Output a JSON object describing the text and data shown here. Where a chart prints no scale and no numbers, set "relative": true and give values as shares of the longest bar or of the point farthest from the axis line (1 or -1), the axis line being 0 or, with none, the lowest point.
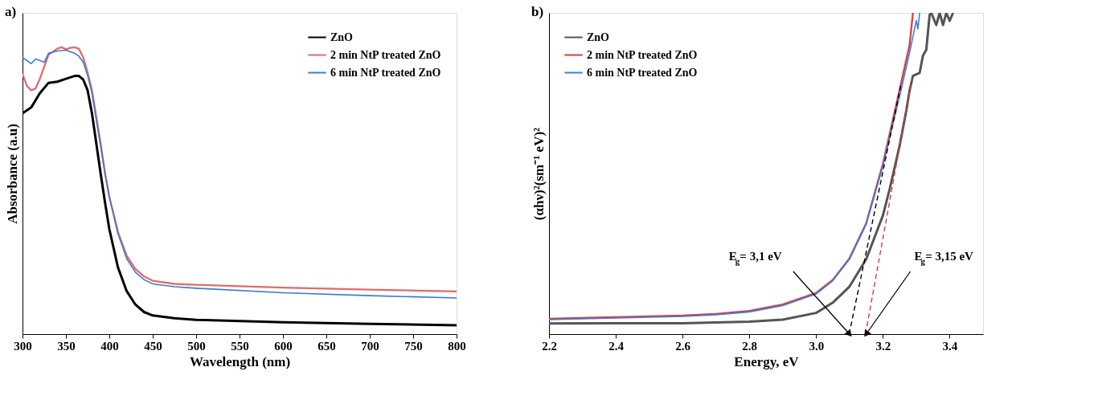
{
  "chart_data": [
    {
      "type": "line",
      "title": "a)",
      "xlabel": "Wavelength (nm)",
      "ylabel": "Absorbance (a.u)",
      "relative": true,
      "legend": "top right",
      "xlim": [
        300,
        800
      ],
      "xticks": [
        300,
        350,
        400,
        450,
        500,
        550,
        600,
        650,
        700,
        750,
        800
      ],
      "series": [
        {
          "name": "ZnO",
          "color": "#000000",
          "x": [
            300,
            310,
            320,
            330,
            340,
            350,
            360,
            365,
            370,
            375,
            380,
            385,
            390,
            395,
            400,
            410,
            420,
            430,
            440,
            450,
            475,
            500,
            600,
            700,
            800
          ],
          "values": [
            0.77,
            0.79,
            0.84,
            0.876,
            0.88,
            0.89,
            0.9,
            0.9,
            0.887,
            0.85,
            0.77,
            0.665,
            0.56,
            0.46,
            0.366,
            0.232,
            0.15,
            0.103,
            0.077,
            0.065,
            0.055,
            0.05,
            0.041,
            0.036,
            0.031
          ]
        },
        {
          "name": "2 min NtP treated ZnO",
          "color": "#e06b6b",
          "x": [
            300,
            305,
            310,
            315,
            320,
            330,
            340,
            345,
            350,
            355,
            360,
            365,
            370,
            375,
            380,
            385,
            390,
            395,
            400,
            410,
            420,
            430,
            440,
            450,
            475,
            500,
            600,
            700,
            800
          ],
          "values": [
            0.907,
            0.866,
            0.85,
            0.856,
            0.89,
            0.974,
            0.995,
            1.0,
            0.993,
            0.998,
            1.0,
            0.995,
            0.964,
            0.912,
            0.85,
            0.758,
            0.665,
            0.562,
            0.479,
            0.356,
            0.273,
            0.227,
            0.201,
            0.186,
            0.175,
            0.172,
            0.162,
            0.155,
            0.149
          ]
        },
        {
          "name": "6 min NtP treated ZnO",
          "color": "#3a7bd5",
          "x": [
            300,
            305,
            310,
            315,
            320,
            325,
            330,
            340,
            350,
            360,
            365,
            370,
            375,
            380,
            385,
            390,
            395,
            400,
            410,
            420,
            430,
            440,
            450,
            475,
            500,
            600,
            700,
            800
          ],
          "values": [
            0.964,
            0.954,
            0.943,
            0.959,
            0.954,
            0.948,
            0.979,
            0.987,
            0.99,
            0.979,
            0.969,
            0.948,
            0.902,
            0.84,
            0.747,
            0.655,
            0.562,
            0.479,
            0.35,
            0.263,
            0.216,
            0.19,
            0.175,
            0.165,
            0.16,
            0.144,
            0.134,
            0.126
          ]
        }
      ]
    },
    {
      "type": "line",
      "title": "b)",
      "xlabel": "Energy, eV",
      "ylabel": "(αhν)²(sm⁻¹ eV)²",
      "relative": true,
      "legend": "top left",
      "xlim": [
        2.2,
        3.5
      ],
      "xticks": [
        {
          "value": 2.2,
          "label": "2.2"
        },
        2.4,
        2.6,
        2.8,
        {
          "value": 3.0,
          "label": "3.0"
        },
        3.2,
        3.4
      ],
      "series": [
        {
          "name": "ZnO",
          "color": "#555555",
          "x": [
            2.2,
            2.6,
            2.8,
            2.9,
            3.0,
            3.05,
            3.1,
            3.15,
            3.2,
            3.22,
            3.25,
            3.27,
            3.28,
            3.29,
            3.31,
            3.32,
            3.33,
            3.34,
            3.345,
            3.36,
            3.37,
            3.38,
            3.39,
            3.4,
            3.41
          ],
          "values": [
            0.033,
            0.034,
            0.039,
            0.045,
            0.066,
            0.098,
            0.148,
            0.233,
            0.369,
            0.45,
            0.586,
            0.695,
            0.758,
            0.804,
            0.813,
            0.867,
            0.885,
            0.994,
            1.0,
            0.962,
            1.0,
            0.962,
            1.0,
            0.975,
            1.0
          ]
        },
        {
          "name": "2 min NtP treated ZnO",
          "color": "#e03a3a",
          "x": [
            2.2,
            2.4,
            2.6,
            2.7,
            2.8,
            2.9,
            3.0,
            3.05,
            3.1,
            3.15,
            3.2,
            3.25,
            3.28,
            3.29
          ],
          "values": [
            0.048,
            0.053,
            0.058,
            0.063,
            0.072,
            0.092,
            0.128,
            0.169,
            0.236,
            0.345,
            0.53,
            0.76,
            0.9,
            1.0
          ]
        },
        {
          "name": "6 min NtP treated ZnO",
          "color": "#3a7fe0",
          "x": [
            2.2,
            2.4,
            2.6,
            2.7,
            2.8,
            2.9,
            3.0,
            3.05,
            3.1,
            3.15,
            3.2,
            3.25,
            3.28,
            3.3,
            3.305,
            3.31
          ],
          "values": [
            0.045,
            0.05,
            0.055,
            0.06,
            0.069,
            0.089,
            0.125,
            0.166,
            0.233,
            0.342,
            0.523,
            0.74,
            0.876,
            0.976,
            0.95,
            1.0
          ]
        },
        {
          "type": "line",
          "color": "#000000",
          "line_style": "dashed",
          "x": [
            3.099,
            3.254
          ],
          "values": [
            0.0,
            0.776
          ]
        },
        {
          "type": "line",
          "color": "#e03a3a",
          "line_style": "dashed",
          "x": [
            3.148,
            3.287
          ],
          "values": [
            0.0,
            0.795
          ]
        }
      ],
      "annotations": [
        {
          "text": "E$_{g}$= 3,1 eV",
          "x": 3.1,
          "y": 0.0
        },
        {
          "text": "E$_{g}$= 3,15 eV",
          "x": 3.15,
          "y": 0.0
        }
      ]
    }
  ]
}
